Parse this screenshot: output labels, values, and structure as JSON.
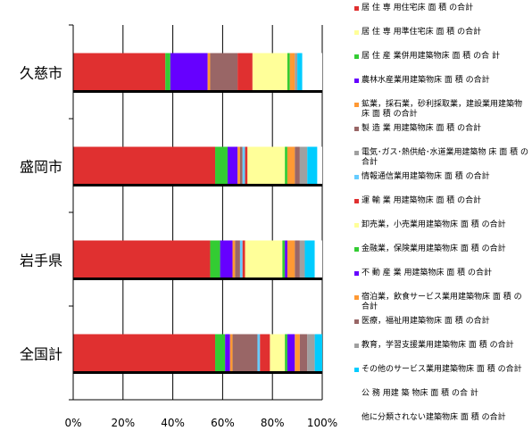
{
  "chart_data": {
    "type": "bar",
    "orientation": "horizontal",
    "stacked": "percent",
    "categories": [
      "久慈市",
      "盛岡市",
      "岩手県",
      "全国計"
    ],
    "x_tick_labels": [
      "0%",
      "20%",
      "40%",
      "60%",
      "80%",
      "100%"
    ],
    "xlim": [
      0,
      100
    ],
    "legend_position": "right",
    "series": [
      {
        "name": "居 住 専 用住宅床 面 積 の合計",
        "color": "#e03030",
        "values": [
          37,
          57,
          55,
          57
        ]
      },
      {
        "name": "居 住 専 用準住宅床 面 積 の合計",
        "color": "#ffff99",
        "values": [
          0,
          0,
          0,
          0
        ]
      },
      {
        "name": "居 住 産 業併用建築物床 面 積 の合 計",
        "color": "#33cc33",
        "values": [
          2,
          5,
          4,
          4
        ]
      },
      {
        "name": "農林水産業用建築物床 面 積 の合計",
        "color": "#6600ff",
        "values": [
          15,
          4,
          5,
          2
        ]
      },
      {
        "name": "鉱業，採石業，砂利採取業，建設業用建築物床 面 積 の合計",
        "color": "#ff9933",
        "values": [
          1,
          1,
          1,
          1
        ]
      },
      {
        "name": "製 造 業 用建築物床 面 積 の合計",
        "color": "#996666",
        "values": [
          11,
          1,
          2,
          10
        ]
      },
      {
        "name": "電気･ガス･熱供給･水道業用建築物 床 面 積 の合計",
        "color": "#a0a0a0",
        "values": [
          0,
          0,
          0,
          0
        ]
      },
      {
        "name": "情報通信業用建築物床 面 積 の合計",
        "color": "#66ccff",
        "values": [
          0,
          1,
          1,
          1
        ]
      },
      {
        "name": "運 輸 業 用建築物床 面 積 の合計",
        "color": "#e03030",
        "values": [
          6,
          1,
          1,
          4
        ]
      },
      {
        "name": "卸売業，小売業用建築物床 面 積 の合計",
        "color": "#ffff99",
        "values": [
          14,
          15,
          15,
          6
        ]
      },
      {
        "name": "金融業，保険業用建築物床 面 積 の合計",
        "color": "#33cc33",
        "values": [
          1,
          1,
          1,
          1
        ]
      },
      {
        "name": "不 動 産 業 用建築物床 面 積 の合計",
        "color": "#6600ff",
        "values": [
          0,
          0,
          1,
          3
        ]
      },
      {
        "name": "宿泊業，飲食サービス業用建築物床 面 積 の合計",
        "color": "#ff9933",
        "values": [
          2,
          3,
          3,
          2
        ]
      },
      {
        "name": "医療，福祉用建築物床 面 積 の合計",
        "color": "#996666",
        "values": [
          0,
          2,
          2,
          3
        ]
      },
      {
        "name": "教育，学習支援業用建築物床 面 積 の合計",
        "color": "#a0a0a0",
        "values": [
          1,
          3,
          2,
          3
        ]
      },
      {
        "name": "その他のサービス業用建築物床 面 積 の合計",
        "color": "#00ccff",
        "values": [
          2,
          4,
          4,
          3
        ]
      },
      {
        "name": "公 務 用建 築 物床 面 積 の合 計",
        "color": "#ffffff",
        "values": [
          0,
          1,
          1,
          0
        ]
      },
      {
        "name": "他に分類されない建築物床 面 積 の合計",
        "color": "#ffffff",
        "values": [
          8,
          1,
          2,
          0
        ]
      }
    ]
  }
}
